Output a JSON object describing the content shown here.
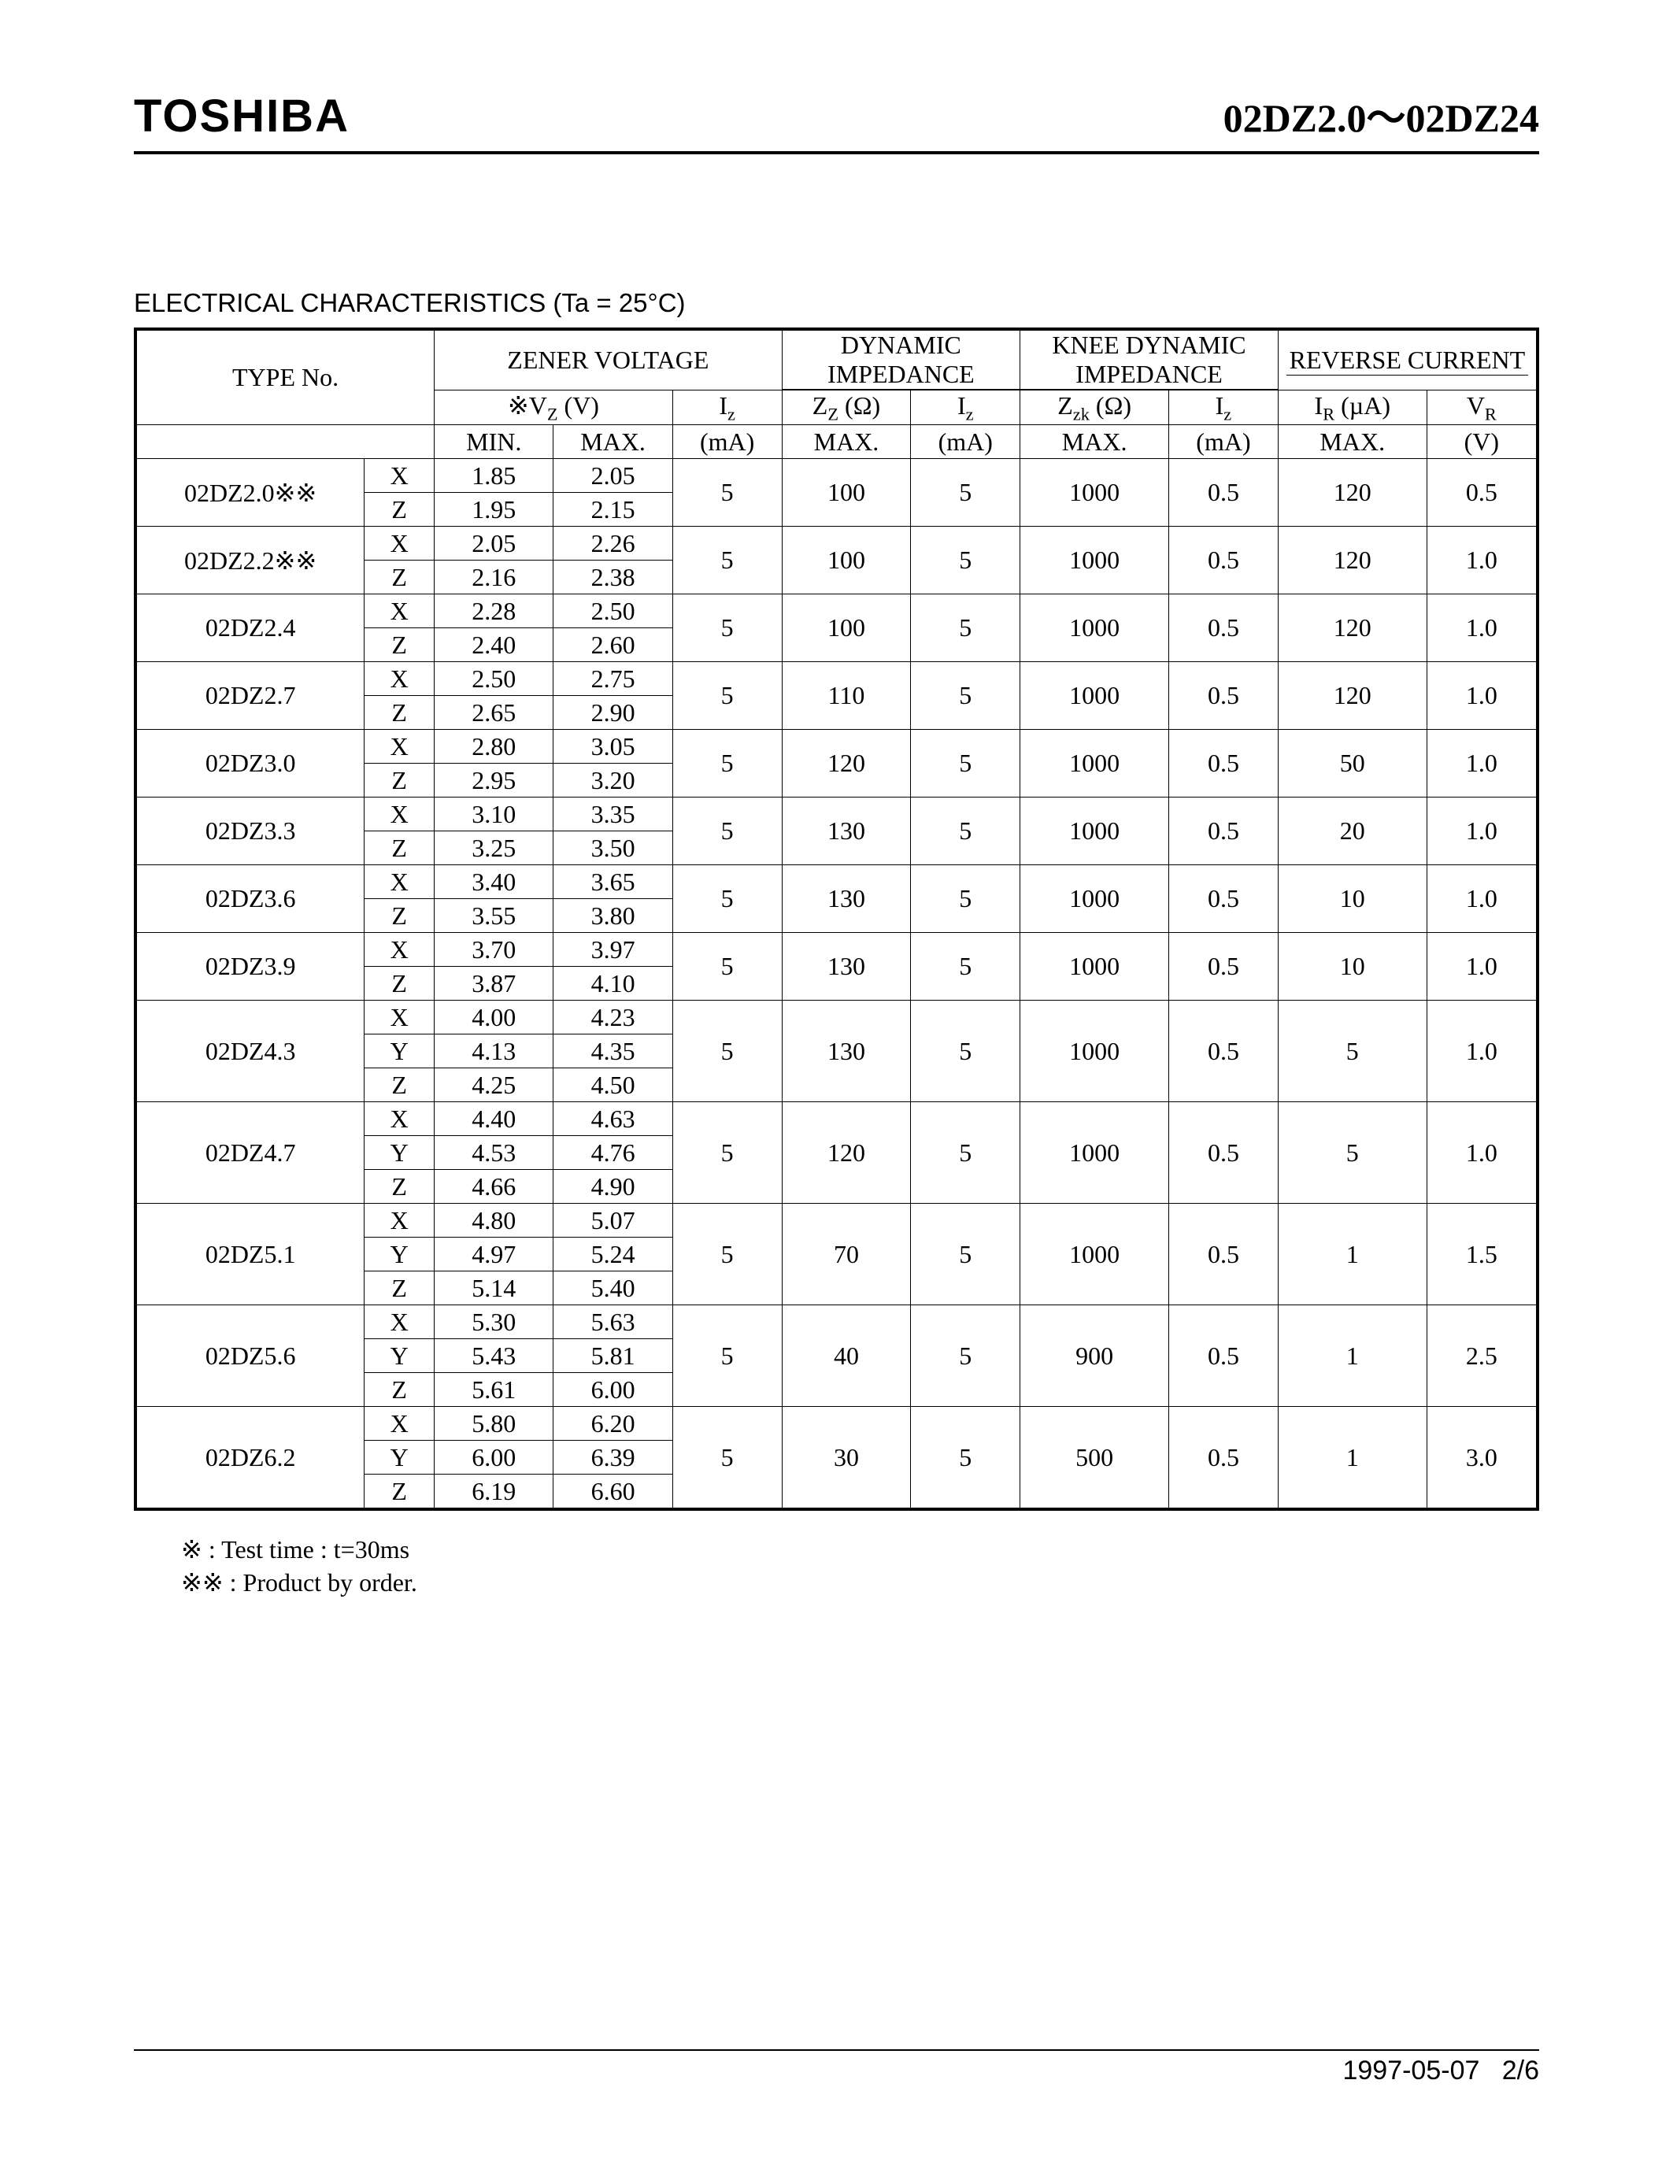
{
  "header": {
    "brand": "TOSHIBA",
    "part_range": "02DZ2.0～02DZ24"
  },
  "section_title": "ELECTRICAL  CHARACTERISTICS (Ta = 25°C)",
  "table": {
    "group_headers": {
      "type_no": "TYPE  No.",
      "zener_voltage": "ZENER VOLTAGE",
      "dynamic_impedance": "DYNAMIC IMPEDANCE",
      "knee_dynamic_impedance": "KNEE  DYNAMIC IMPEDANCE",
      "reverse_current": "REVERSE CURRENT"
    },
    "sub_headers": {
      "vz": "※V",
      "vz_sub": "Z",
      "vz_unit": "(V)",
      "iz": "I",
      "iz_sub": "z",
      "min": "MIN.",
      "max": "MAX.",
      "ma": "(mA)",
      "zz": "Z",
      "zz_sub": "Z",
      "ohm": "(Ω)",
      "zzk": "Z",
      "zzk_sub": "zk",
      "ir": "I",
      "ir_sub": "R",
      "ir_unit": "(µA)",
      "vr": "V",
      "vr_sub": "R",
      "volt": "(V)"
    },
    "groups": [
      {
        "type": "02DZ2.0※※",
        "vars": [
          "X",
          "Z"
        ],
        "vmin": [
          "1.85",
          "1.95"
        ],
        "vmax": [
          "2.05",
          "2.15"
        ],
        "iz_v": "5",
        "zz": "100",
        "iz_z": "5",
        "zzk": "1000",
        "iz_k": "0.5",
        "ir": "120",
        "vr": "0.5"
      },
      {
        "type": "02DZ2.2※※",
        "vars": [
          "X",
          "Z"
        ],
        "vmin": [
          "2.05",
          "2.16"
        ],
        "vmax": [
          "2.26",
          "2.38"
        ],
        "iz_v": "5",
        "zz": "100",
        "iz_z": "5",
        "zzk": "1000",
        "iz_k": "0.5",
        "ir": "120",
        "vr": "1.0"
      },
      {
        "type": "02DZ2.4",
        "vars": [
          "X",
          "Z"
        ],
        "vmin": [
          "2.28",
          "2.40"
        ],
        "vmax": [
          "2.50",
          "2.60"
        ],
        "iz_v": "5",
        "zz": "100",
        "iz_z": "5",
        "zzk": "1000",
        "iz_k": "0.5",
        "ir": "120",
        "vr": "1.0"
      },
      {
        "type": "02DZ2.7",
        "vars": [
          "X",
          "Z"
        ],
        "vmin": [
          "2.50",
          "2.65"
        ],
        "vmax": [
          "2.75",
          "2.90"
        ],
        "iz_v": "5",
        "zz": "110",
        "iz_z": "5",
        "zzk": "1000",
        "iz_k": "0.5",
        "ir": "120",
        "vr": "1.0"
      },
      {
        "type": "02DZ3.0",
        "vars": [
          "X",
          "Z"
        ],
        "vmin": [
          "2.80",
          "2.95"
        ],
        "vmax": [
          "3.05",
          "3.20"
        ],
        "iz_v": "5",
        "zz": "120",
        "iz_z": "5",
        "zzk": "1000",
        "iz_k": "0.5",
        "ir": "50",
        "vr": "1.0"
      },
      {
        "type": "02DZ3.3",
        "vars": [
          "X",
          "Z"
        ],
        "vmin": [
          "3.10",
          "3.25"
        ],
        "vmax": [
          "3.35",
          "3.50"
        ],
        "iz_v": "5",
        "zz": "130",
        "iz_z": "5",
        "zzk": "1000",
        "iz_k": "0.5",
        "ir": "20",
        "vr": "1.0"
      },
      {
        "type": "02DZ3.6",
        "vars": [
          "X",
          "Z"
        ],
        "vmin": [
          "3.40",
          "3.55"
        ],
        "vmax": [
          "3.65",
          "3.80"
        ],
        "iz_v": "5",
        "zz": "130",
        "iz_z": "5",
        "zzk": "1000",
        "iz_k": "0.5",
        "ir": "10",
        "vr": "1.0"
      },
      {
        "type": "02DZ3.9",
        "vars": [
          "X",
          "Z"
        ],
        "vmin": [
          "3.70",
          "3.87"
        ],
        "vmax": [
          "3.97",
          "4.10"
        ],
        "iz_v": "5",
        "zz": "130",
        "iz_z": "5",
        "zzk": "1000",
        "iz_k": "0.5",
        "ir": "10",
        "vr": "1.0"
      },
      {
        "type": "02DZ4.3",
        "vars": [
          "X",
          "Y",
          "Z"
        ],
        "vmin": [
          "4.00",
          "4.13",
          "4.25"
        ],
        "vmax": [
          "4.23",
          "4.35",
          "4.50"
        ],
        "iz_v": "5",
        "zz": "130",
        "iz_z": "5",
        "zzk": "1000",
        "iz_k": "0.5",
        "ir": "5",
        "vr": "1.0"
      },
      {
        "type": "02DZ4.7",
        "vars": [
          "X",
          "Y",
          "Z"
        ],
        "vmin": [
          "4.40",
          "4.53",
          "4.66"
        ],
        "vmax": [
          "4.63",
          "4.76",
          "4.90"
        ],
        "iz_v": "5",
        "zz": "120",
        "iz_z": "5",
        "zzk": "1000",
        "iz_k": "0.5",
        "ir": "5",
        "vr": "1.0"
      },
      {
        "type": "02DZ5.1",
        "vars": [
          "X",
          "Y",
          "Z"
        ],
        "vmin": [
          "4.80",
          "4.97",
          "5.14"
        ],
        "vmax": [
          "5.07",
          "5.24",
          "5.40"
        ],
        "iz_v": "5",
        "zz": "70",
        "iz_z": "5",
        "zzk": "1000",
        "iz_k": "0.5",
        "ir": "1",
        "vr": "1.5"
      },
      {
        "type": "02DZ5.6",
        "vars": [
          "X",
          "Y",
          "Z"
        ],
        "vmin": [
          "5.30",
          "5.43",
          "5.61"
        ],
        "vmax": [
          "5.63",
          "5.81",
          "6.00"
        ],
        "iz_v": "5",
        "zz": "40",
        "iz_z": "5",
        "zzk": "900",
        "iz_k": "0.5",
        "ir": "1",
        "vr": "2.5"
      },
      {
        "type": "02DZ6.2",
        "vars": [
          "X",
          "Y",
          "Z"
        ],
        "vmin": [
          "5.80",
          "6.00",
          "6.19"
        ],
        "vmax": [
          "6.20",
          "6.39",
          "6.60"
        ],
        "iz_v": "5",
        "zz": "30",
        "iz_z": "5",
        "zzk": "500",
        "iz_k": "0.5",
        "ir": "1",
        "vr": "3.0"
      }
    ]
  },
  "notes": {
    "n1": "※    : Test time : t=30ms",
    "n2": "※※  : Product by order."
  },
  "footer": {
    "date": "1997-05-07",
    "page": "2/6"
  }
}
